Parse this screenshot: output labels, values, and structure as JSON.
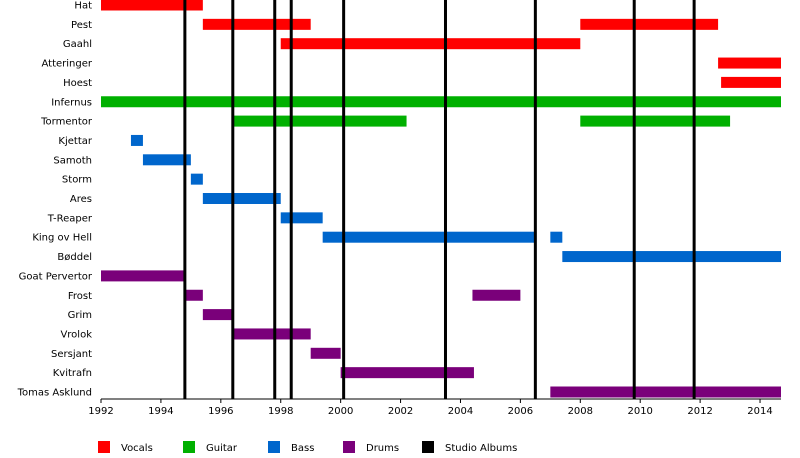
{
  "chart_data": {
    "type": "timeline",
    "x_start": 1992,
    "x_end": 2014.7,
    "x_ticks": [
      1992,
      1994,
      1996,
      1998,
      2000,
      2002,
      2004,
      2006,
      2008,
      2010,
      2012,
      2014
    ],
    "grid": false,
    "legend_position": "bottom",
    "role_colors": {
      "Vocals": "#ff0000",
      "Guitar": "#00b000",
      "Bass": "#0066cc",
      "Drums": "#7a007a",
      "Studio Albums": "#000000"
    },
    "legend": [
      "Vocals",
      "Guitar",
      "Bass",
      "Drums",
      "Studio Albums"
    ],
    "members": [
      {
        "name": "Hat",
        "periods": [
          {
            "role": "Vocals",
            "start": 1992.0,
            "end": 1995.4
          }
        ]
      },
      {
        "name": "Pest",
        "periods": [
          {
            "role": "Vocals",
            "start": 1995.4,
            "end": 1999.0
          },
          {
            "role": "Vocals",
            "start": 2008.0,
            "end": 2012.6
          }
        ]
      },
      {
        "name": "Gaahl",
        "periods": [
          {
            "role": "Vocals",
            "start": 1998.0,
            "end": 2008.0
          }
        ]
      },
      {
        "name": "Atteringer",
        "periods": [
          {
            "role": "Vocals",
            "start": 2012.6,
            "end": 2014.7
          }
        ]
      },
      {
        "name": "Hoest",
        "periods": [
          {
            "role": "Vocals",
            "start": 2012.7,
            "end": 2014.7
          }
        ]
      },
      {
        "name": "Infernus",
        "periods": [
          {
            "role": "Guitar",
            "start": 1992.0,
            "end": 2014.7
          }
        ]
      },
      {
        "name": "Tormentor",
        "periods": [
          {
            "role": "Guitar",
            "start": 1996.4,
            "end": 2002.2
          },
          {
            "role": "Guitar",
            "start": 2008.0,
            "end": 2013.0
          }
        ]
      },
      {
        "name": "Kjettar",
        "periods": [
          {
            "role": "Bass",
            "start": 1993.0,
            "end": 1993.4
          }
        ]
      },
      {
        "name": "Samoth",
        "periods": [
          {
            "role": "Bass",
            "start": 1993.4,
            "end": 1995.0
          }
        ]
      },
      {
        "name": "Storm",
        "periods": [
          {
            "role": "Bass",
            "start": 1995.0,
            "end": 1995.4
          }
        ]
      },
      {
        "name": "Ares",
        "periods": [
          {
            "role": "Bass",
            "start": 1995.4,
            "end": 1998.0
          }
        ]
      },
      {
        "name": "T-Reaper",
        "periods": [
          {
            "role": "Bass",
            "start": 1998.0,
            "end": 1999.4
          }
        ]
      },
      {
        "name": "King ov Hell",
        "periods": [
          {
            "role": "Bass",
            "start": 1999.4,
            "end": 2006.5
          },
          {
            "role": "Bass",
            "start": 2007.0,
            "end": 2007.4
          }
        ]
      },
      {
        "name": "Bøddel",
        "periods": [
          {
            "role": "Bass",
            "start": 2007.4,
            "end": 2014.7
          }
        ]
      },
      {
        "name": "Goat Pervertor",
        "periods": [
          {
            "role": "Drums",
            "start": 1992.0,
            "end": 1994.8
          }
        ]
      },
      {
        "name": "Frost",
        "periods": [
          {
            "role": "Drums",
            "start": 1994.8,
            "end": 1995.4
          },
          {
            "role": "Drums",
            "start": 2004.4,
            "end": 2006.0
          }
        ]
      },
      {
        "name": "Grim",
        "periods": [
          {
            "role": "Drums",
            "start": 1995.4,
            "end": 1996.4
          }
        ]
      },
      {
        "name": "Vrolok",
        "periods": [
          {
            "role": "Drums",
            "start": 1996.4,
            "end": 1999.0
          }
        ]
      },
      {
        "name": "Sersjant",
        "periods": [
          {
            "role": "Drums",
            "start": 1999.0,
            "end": 2000.0
          }
        ]
      },
      {
        "name": "Kvitrafn",
        "periods": [
          {
            "role": "Drums",
            "start": 2000.0,
            "end": 2004.45
          }
        ]
      },
      {
        "name": "Tomas Asklund",
        "periods": [
          {
            "role": "Drums",
            "start": 2007.0,
            "end": 2014.7
          }
        ]
      }
    ],
    "studio_albums": [
      1994.8,
      1996.4,
      1997.8,
      1998.35,
      2000.1,
      2003.5,
      2006.5,
      2009.8,
      2011.8
    ]
  }
}
